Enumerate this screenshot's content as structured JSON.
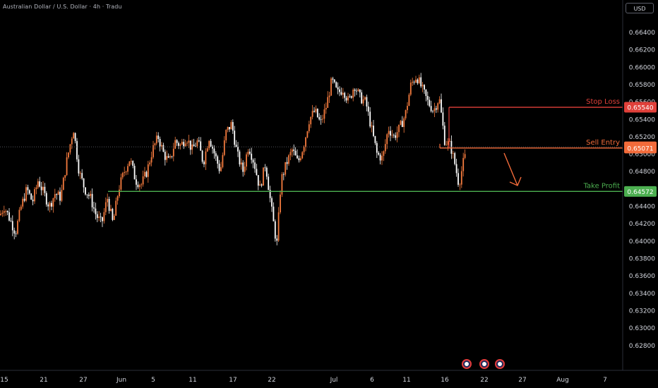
{
  "header": {
    "title": "Australian Dollar / U.S. Dollar · 4h · Tradu",
    "currency": "USD"
  },
  "colors": {
    "background": "#000000",
    "candle_up": "#f47b3e",
    "candle_down": "#ffffff",
    "stop_loss": "#e0403a",
    "sell_entry": "#f26b3a",
    "take_profit": "#4caf50",
    "axis_text": "#d1d4dc"
  },
  "chart_data": {
    "type": "candlestick",
    "symbol": "AUD/USD",
    "timeframe": "4h",
    "ylim": [
      0.6279,
      0.6653
    ],
    "yticks": [
      "0.66400",
      "0.66200",
      "0.66000",
      "0.65800",
      "0.65600",
      "0.65400",
      "0.65200",
      "0.65000",
      "0.64800",
      "0.64600",
      "0.64400",
      "0.64200",
      "0.64000",
      "0.63800",
      "0.63600",
      "0.63400",
      "0.63200",
      "0.63000",
      "0.62800"
    ],
    "xticks": [
      "15",
      "21",
      "27",
      "Jun",
      "5",
      "11",
      "17",
      "22",
      "Jul",
      "6",
      "11",
      "16",
      "22",
      "27",
      "Aug",
      "7"
    ],
    "price_path": [
      [
        0,
        0.643
      ],
      [
        6,
        0.644
      ],
      [
        14,
        0.6425
      ],
      [
        22,
        0.641
      ],
      [
        30,
        0.644
      ],
      [
        38,
        0.646
      ],
      [
        46,
        0.6445
      ],
      [
        54,
        0.647
      ],
      [
        62,
        0.6455
      ],
      [
        70,
        0.644
      ],
      [
        78,
        0.6455
      ],
      [
        86,
        0.645
      ],
      [
        94,
        0.649
      ],
      [
        104,
        0.653
      ],
      [
        112,
        0.648
      ],
      [
        120,
        0.646
      ],
      [
        128,
        0.645
      ],
      [
        136,
        0.643
      ],
      [
        144,
        0.642
      ],
      [
        152,
        0.645
      ],
      [
        160,
        0.642
      ],
      [
        168,
        0.646
      ],
      [
        176,
        0.648
      ],
      [
        184,
        0.6495
      ],
      [
        192,
        0.647
      ],
      [
        200,
        0.6465
      ],
      [
        208,
        0.648
      ],
      [
        216,
        0.6505
      ],
      [
        224,
        0.652
      ],
      [
        232,
        0.65
      ],
      [
        240,
        0.649
      ],
      [
        248,
        0.6515
      ],
      [
        256,
        0.651
      ],
      [
        264,
        0.652
      ],
      [
        272,
        0.6505
      ],
      [
        280,
        0.6515
      ],
      [
        288,
        0.649
      ],
      [
        296,
        0.652
      ],
      [
        304,
        0.65
      ],
      [
        312,
        0.648
      ],
      [
        320,
        0.6525
      ],
      [
        328,
        0.6535
      ],
      [
        336,
        0.65
      ],
      [
        344,
        0.648
      ],
      [
        352,
        0.651
      ],
      [
        360,
        0.649
      ],
      [
        368,
        0.646
      ],
      [
        376,
        0.649
      ],
      [
        384,
        0.644
      ],
      [
        392,
        0.6395
      ],
      [
        398,
        0.647
      ],
      [
        406,
        0.649
      ],
      [
        414,
        0.6505
      ],
      [
        422,
        0.649
      ],
      [
        430,
        0.651
      ],
      [
        438,
        0.654
      ],
      [
        446,
        0.655
      ],
      [
        454,
        0.6535
      ],
      [
        462,
        0.6555
      ],
      [
        470,
        0.6585
      ],
      [
        478,
        0.657
      ],
      [
        486,
        0.6575
      ],
      [
        494,
        0.656
      ],
      [
        502,
        0.658
      ],
      [
        510,
        0.6565
      ],
      [
        518,
        0.656
      ],
      [
        526,
        0.653
      ],
      [
        534,
        0.65
      ],
      [
        542,
        0.6495
      ],
      [
        550,
        0.653
      ],
      [
        558,
        0.652
      ],
      [
        566,
        0.653
      ],
      [
        574,
        0.6545
      ],
      [
        582,
        0.658
      ],
      [
        590,
        0.659
      ],
      [
        598,
        0.6575
      ],
      [
        606,
        0.656
      ],
      [
        614,
        0.655
      ],
      [
        622,
        0.6565
      ],
      [
        630,
        0.6515
      ],
      [
        638,
        0.651
      ],
      [
        644,
        0.649
      ],
      [
        650,
        0.6465
      ],
      [
        656,
        0.649
      ],
      [
        660,
        0.65
      ]
    ],
    "levels": [
      {
        "name": "Stop Loss",
        "price": 0.6554,
        "price_label": "0.65540",
        "role": "stop_loss"
      },
      {
        "name": "Sell Entry",
        "price": 0.65071,
        "price_label": "0.65071",
        "role": "sell_entry"
      },
      {
        "name": "Take Profit",
        "price": 0.64572,
        "price_label": "0.64572",
        "role": "take_profit"
      }
    ],
    "last_price_label": "0.65085",
    "last_price": 0.65085,
    "grid": false
  }
}
